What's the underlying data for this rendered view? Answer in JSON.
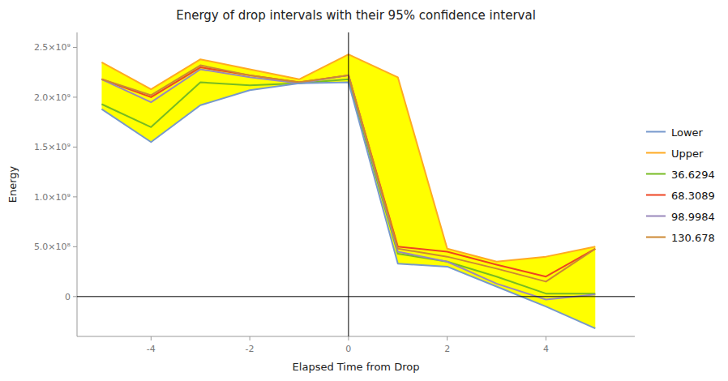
{
  "chart_data": {
    "type": "line",
    "title": "Energy of drop intervals with their 95% confidence interval",
    "x_label": "Elapsed Time from Drop",
    "y_label": "Energy",
    "xlim": [
      -5.5,
      5.8
    ],
    "ylim": [
      -400000000.0,
      2650000000.0
    ],
    "xticks": [
      -4,
      -2,
      0,
      2,
      4
    ],
    "yticks": [
      0,
      {
        "value": 500000000.0,
        "label": "5.0×10⁸"
      },
      {
        "value": 1000000000.0,
        "label": "1.0×10⁹"
      },
      {
        "value": 1500000000.0,
        "label": "1.5×10⁹"
      },
      {
        "value": 2000000000.0,
        "label": "2.0×10⁹"
      },
      {
        "value": 2500000000.0,
        "label": "2.5×10⁹"
      }
    ],
    "grid": false,
    "legend": "right",
    "color": "yellow",
    "x_reference": 0,
    "y_reference": 0,
    "x": [
      -5,
      -4,
      -3,
      -2,
      -1,
      0,
      1,
      2,
      3,
      4,
      5
    ],
    "series": [
      {
        "name": "Lower",
        "color": "#7799cc",
        "values": [
          1880000000.0,
          1550000000.0,
          1920000000.0,
          2070000000.0,
          2140000000.0,
          2150000000.0,
          330000000.0,
          300000000.0,
          100000000.0,
          -100000000.0,
          -320000000.0
        ]
      },
      {
        "name": "Upper",
        "color": "#ffaa22",
        "values": [
          2350000000.0,
          2080000000.0,
          2380000000.0,
          2280000000.0,
          2180000000.0,
          2430000000.0,
          2200000000.0,
          480000000.0,
          350000000.0,
          400000000.0,
          500000000.0
        ]
      },
      {
        "name": "36.6294",
        "color": "#77bb22",
        "values": [
          1930000000.0,
          1700000000.0,
          2150000000.0,
          2120000000.0,
          2140000000.0,
          2180000000.0,
          430000000.0,
          350000000.0,
          200000000.0,
          30000000.0,
          30000000.0
        ]
      },
      {
        "name": "68.3089",
        "color": "#ee4422",
        "values": [
          2180000000.0,
          2000000000.0,
          2300000000.0,
          2220000000.0,
          2150000000.0,
          2220000000.0,
          500000000.0,
          450000000.0,
          320000000.0,
          200000000.0,
          480000000.0
        ]
      },
      {
        "name": "98.9984",
        "color": "#9988bb",
        "values": [
          2180000000.0,
          1950000000.0,
          2280000000.0,
          2200000000.0,
          2140000000.0,
          2220000000.0,
          450000000.0,
          350000000.0,
          130000000.0,
          -30000000.0,
          20000000.0
        ]
      },
      {
        "name": "130.678",
        "color": "#cc8833",
        "values": [
          2180000000.0,
          2020000000.0,
          2320000000.0,
          2220000000.0,
          2150000000.0,
          2220000000.0,
          480000000.0,
          400000000.0,
          280000000.0,
          150000000.0,
          480000000.0
        ]
      }
    ]
  }
}
